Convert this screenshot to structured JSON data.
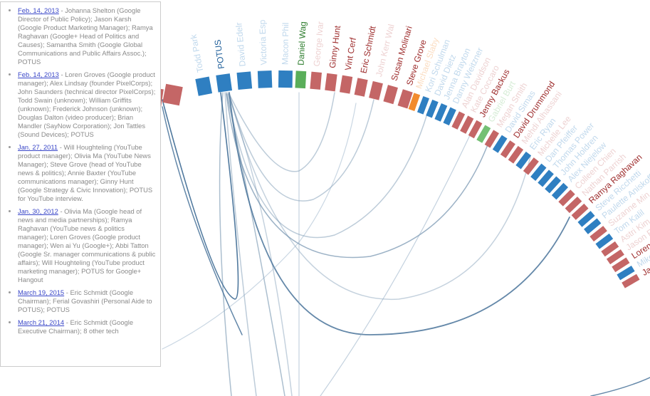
{
  "sidebar": {
    "entries": [
      {
        "date": "Feb. 14, 2013",
        "details": "- Johanna Shelton (Google Director of Public Policy); Jason Karsh (Google Product Marketing Manager); Ramya Raghavan (Google+ Head of Politics and Causes); Samantha Smith (Google Global Communications and Public Affairs Assoc.); POTUS"
      },
      {
        "date": "Feb. 14, 2013",
        "details": "- Loren Groves (Google product manager); Alex Lindsay (founder PixelCorps); John Saunders (technical director PixelCorps); Todd Swain (unknown); William Griffits (unknown); Frederick Johnson (unknown); Douglas Dalton (video producer); Brian Mandler (SayNow Corporation); Jon Tattles (Sound Devices); POTUS"
      },
      {
        "date": "Jan. 27, 2011",
        "details": "- Will Houghteling (YouTube product manager); Olivia Ma (YouTube News Manager); Steve Grove (head of YouTube news & politics); Annie Baxter (YouTube communications manager); Ginny Hunt (Google Strategy & Civic Innovation); POTUS for YouTube interview."
      },
      {
        "date": "Jan. 30, 2012",
        "details": "- Olivia Ma (Google head of news and media partnerships); Ramya Raghavan (YouTube news & politics manager); Loren Groves (Google product manager); Wen ai Yu (Google+); Abbi Tatton (Google Sr. manager communications & public affairs); Will Houghteling (YouTube product marketing manager); POTUS for Google+ Hangout"
      },
      {
        "date": "March 19, 2015",
        "details": "- Eric Schmidt (Google Chairman); Ferial Govashiri (Personal Aide to POTUS); POTUS"
      },
      {
        "date": "March 21, 2014",
        "details": "- Eric Schmidt (Google Executive Chairman); 8 other tech"
      }
    ]
  },
  "nodes": [
    {
      "label": "Todd Park",
      "color": "#2f7fc1",
      "active": false
    },
    {
      "label": "POTUS",
      "color": "#2f7fc1",
      "active": true
    },
    {
      "label": "David Edelr",
      "color": "#2f7fc1",
      "active": false
    },
    {
      "label": "Victoria Esp",
      "color": "#2f7fc1",
      "active": false
    },
    {
      "label": "Macon Phil",
      "color": "#2f7fc1",
      "active": false
    },
    {
      "label": "Daniel Wag",
      "color": "#5aae5a",
      "active": true
    },
    {
      "label": "George Ivar",
      "color": "#c46666",
      "active": false
    },
    {
      "label": "Ginny Hunt",
      "color": "#c46666",
      "active": true
    },
    {
      "label": "Vint Cerf",
      "color": "#c46666",
      "active": true
    },
    {
      "label": "Eric Schmidt",
      "color": "#c46666",
      "active": true
    },
    {
      "label": "John Kerr Wal",
      "color": "#c46666",
      "active": false
    },
    {
      "label": "Susan Molinari",
      "color": "#c46666",
      "active": true
    },
    {
      "label": "Steve Grove",
      "color": "#c46666",
      "active": true
    },
    {
      "label": "Michael Slaby",
      "color": "#f28b2e",
      "active": false
    },
    {
      "label": "Kori Schulman",
      "color": "#2f7fc1",
      "active": false
    },
    {
      "label": "David Dietz",
      "color": "#2f7fc1",
      "active": false
    },
    {
      "label": "Jenna Brayton",
      "color": "#2f7fc1",
      "active": false
    },
    {
      "label": "Danny Weitzner",
      "color": "#2f7fc1",
      "active": false
    },
    {
      "label": "Alan Davidson",
      "color": "#c46666",
      "active": false
    },
    {
      "label": "Kate Coccaro",
      "color": "#c46666",
      "active": false
    },
    {
      "label": "Jenny Backus",
      "color": "#c46666",
      "active": true
    },
    {
      "label": "Gabriel Burt",
      "color": "#74c074",
      "active": false
    },
    {
      "label": "Megan Smith",
      "color": "#c46666",
      "active": false
    },
    {
      "label": "David Simas",
      "color": "#2f7fc1",
      "active": false
    },
    {
      "label": "David Drummond",
      "color": "#c46666",
      "active": true
    },
    {
      "label": "Mehdi Alhassani",
      "color": "#c46666",
      "active": false
    },
    {
      "label": "Eric Ryan",
      "color": "#2f7fc1",
      "active": false
    },
    {
      "label": "Michelle Lee",
      "color": "#c46666",
      "active": false
    },
    {
      "label": "Dan Pfeiffer",
      "color": "#2f7fc1",
      "active": false
    },
    {
      "label": "Thomas Power",
      "color": "#2f7fc1",
      "active": false
    },
    {
      "label": "John Holdren",
      "color": "#2f7fc1",
      "active": false
    },
    {
      "label": "Alex Niejelow",
      "color": "#2f7fc1",
      "active": false
    },
    {
      "label": "Colleen Chien",
      "color": "#c46666",
      "active": false
    },
    {
      "label": "Nathan Parrish",
      "color": "#c46666",
      "active": false
    },
    {
      "label": "Ramya Raghavan",
      "color": "#c46666",
      "active": true
    },
    {
      "label": "Steve Ricchetti",
      "color": "#2f7fc1",
      "active": false
    },
    {
      "label": "Paulette Aniskoff",
      "color": "#2f7fc1",
      "active": false
    },
    {
      "label": "Suzanne Min",
      "color": "#c46666",
      "active": false
    },
    {
      "label": "Tom Kalil",
      "color": "#2f7fc1",
      "active": false
    },
    {
      "label": "Astri Kim",
      "color": "#c46666",
      "active": false
    },
    {
      "label": "Jason Fu",
      "color": "#c46666",
      "active": false
    },
    {
      "label": "Loren",
      "color": "#c46666",
      "active": true
    },
    {
      "label": "Mikey",
      "color": "#2f7fc1",
      "active": false
    },
    {
      "label": "Ja",
      "color": "#c46666",
      "active": true
    }
  ]
}
